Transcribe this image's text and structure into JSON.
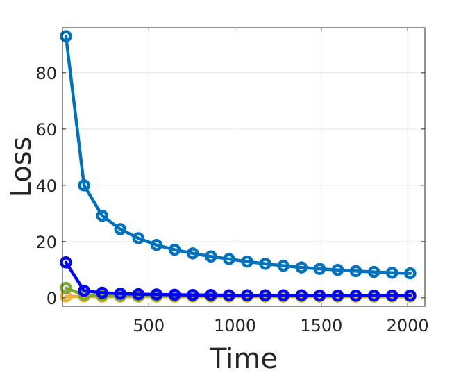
{
  "chart_data": {
    "type": "line",
    "xlabel": "Time",
    "ylabel": "Loss",
    "xlim": [
      0,
      2100
    ],
    "ylim": [
      -3,
      96
    ],
    "xticks": [
      500,
      1000,
      1500,
      2000
    ],
    "yticks": [
      0,
      20,
      40,
      60,
      80
    ],
    "grid": true,
    "marker": "circle",
    "x": [
      20,
      125,
      230,
      335,
      440,
      545,
      650,
      755,
      860,
      965,
      1070,
      1175,
      1280,
      1385,
      1490,
      1595,
      1700,
      1805,
      1910,
      2015
    ],
    "series": [
      {
        "color": "#f0b030",
        "values": [
          0.5,
          0.5,
          0.4,
          0.4,
          0.4,
          0.4,
          0.4,
          0.4,
          0.4,
          0.4,
          0.4,
          0.4,
          0.4,
          0.4,
          0.4,
          0.4,
          0.4,
          0.4,
          0.4,
          0.4
        ]
      },
      {
        "color": "#7aaa35",
        "values": [
          3.5,
          1.0,
          0.8,
          0.7,
          0.7,
          0.7,
          0.7,
          0.7,
          0.7,
          0.7,
          0.7,
          0.7,
          0.7,
          0.7,
          0.7,
          0.7,
          0.7,
          0.7,
          0.7,
          0.7
        ]
      },
      {
        "color": "#0072bd",
        "values": [
          93,
          40,
          29.2,
          24.4,
          21.2,
          18.8,
          17.1,
          15.8,
          14.7,
          13.8,
          12.9,
          12.1,
          11.4,
          10.8,
          10.3,
          9.9,
          9.5,
          9.2,
          8.9,
          8.7
        ]
      },
      {
        "color": "#0000ff",
        "values": [
          12.6,
          2.5,
          1.8,
          1.5,
          1.3,
          1.2,
          1.1,
          1.0,
          1.0,
          0.9,
          0.9,
          0.9,
          0.9,
          0.9,
          0.8,
          0.8,
          0.8,
          0.8,
          0.8,
          0.8
        ]
      }
    ]
  }
}
